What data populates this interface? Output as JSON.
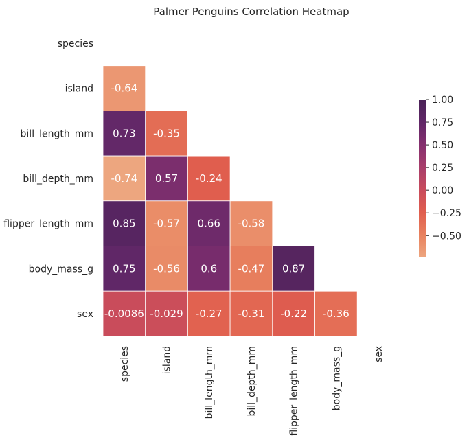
{
  "chart_data": {
    "type": "heatmap",
    "title": "Palmer Penguins Correlation Heatmap",
    "variables": [
      "species",
      "island",
      "bill_length_mm",
      "bill_depth_mm",
      "flipper_length_mm",
      "body_mass_g",
      "sex"
    ],
    "mask": "upper-triangle-including-diagonal",
    "cells": [
      {
        "row": "island",
        "col": "species",
        "value": -0.64,
        "label": "-0.64"
      },
      {
        "row": "bill_length_mm",
        "col": "species",
        "value": 0.73,
        "label": "0.73"
      },
      {
        "row": "bill_length_mm",
        "col": "island",
        "value": -0.35,
        "label": "-0.35"
      },
      {
        "row": "bill_depth_mm",
        "col": "species",
        "value": -0.74,
        "label": "-0.74"
      },
      {
        "row": "bill_depth_mm",
        "col": "island",
        "value": 0.57,
        "label": "0.57"
      },
      {
        "row": "bill_depth_mm",
        "col": "bill_length_mm",
        "value": -0.24,
        "label": "-0.24"
      },
      {
        "row": "flipper_length_mm",
        "col": "species",
        "value": 0.85,
        "label": "0.85"
      },
      {
        "row": "flipper_length_mm",
        "col": "island",
        "value": -0.57,
        "label": "-0.57"
      },
      {
        "row": "flipper_length_mm",
        "col": "bill_length_mm",
        "value": 0.66,
        "label": "0.66"
      },
      {
        "row": "flipper_length_mm",
        "col": "bill_depth_mm",
        "value": -0.58,
        "label": "-0.58"
      },
      {
        "row": "body_mass_g",
        "col": "species",
        "value": 0.75,
        "label": "0.75"
      },
      {
        "row": "body_mass_g",
        "col": "island",
        "value": -0.56,
        "label": "-0.56"
      },
      {
        "row": "body_mass_g",
        "col": "bill_length_mm",
        "value": 0.6,
        "label": "0.6"
      },
      {
        "row": "body_mass_g",
        "col": "bill_depth_mm",
        "value": -0.47,
        "label": "-0.47"
      },
      {
        "row": "body_mass_g",
        "col": "flipper_length_mm",
        "value": 0.87,
        "label": "0.87"
      },
      {
        "row": "sex",
        "col": "species",
        "value": -0.0086,
        "label": "-0.0086"
      },
      {
        "row": "sex",
        "col": "island",
        "value": -0.029,
        "label": "-0.029"
      },
      {
        "row": "sex",
        "col": "bill_length_mm",
        "value": -0.27,
        "label": "-0.27"
      },
      {
        "row": "sex",
        "col": "bill_depth_mm",
        "value": -0.31,
        "label": "-0.31"
      },
      {
        "row": "sex",
        "col": "flipper_length_mm",
        "value": -0.22,
        "label": "-0.22"
      },
      {
        "row": "sex",
        "col": "body_mass_g",
        "value": -0.36,
        "label": "-0.36"
      }
    ],
    "colorbar": {
      "range": [
        -0.74,
        1.0
      ],
      "ticks": [
        1.0,
        0.75,
        0.5,
        0.25,
        0.0,
        -0.25,
        -0.5
      ],
      "tick_labels": [
        "1.00",
        "0.75",
        "0.50",
        "0.25",
        "0.00",
        "−0.25",
        "−0.50"
      ],
      "colormap": "flare",
      "stops": [
        "#EDA67F",
        "#E8815E",
        "#E05E4E",
        "#C84B5C",
        "#A83E6B",
        "#85306F",
        "#602767",
        "#4A2257"
      ]
    },
    "grid": false,
    "cell_border_color": "#ffffff",
    "legend_placement": "right"
  }
}
